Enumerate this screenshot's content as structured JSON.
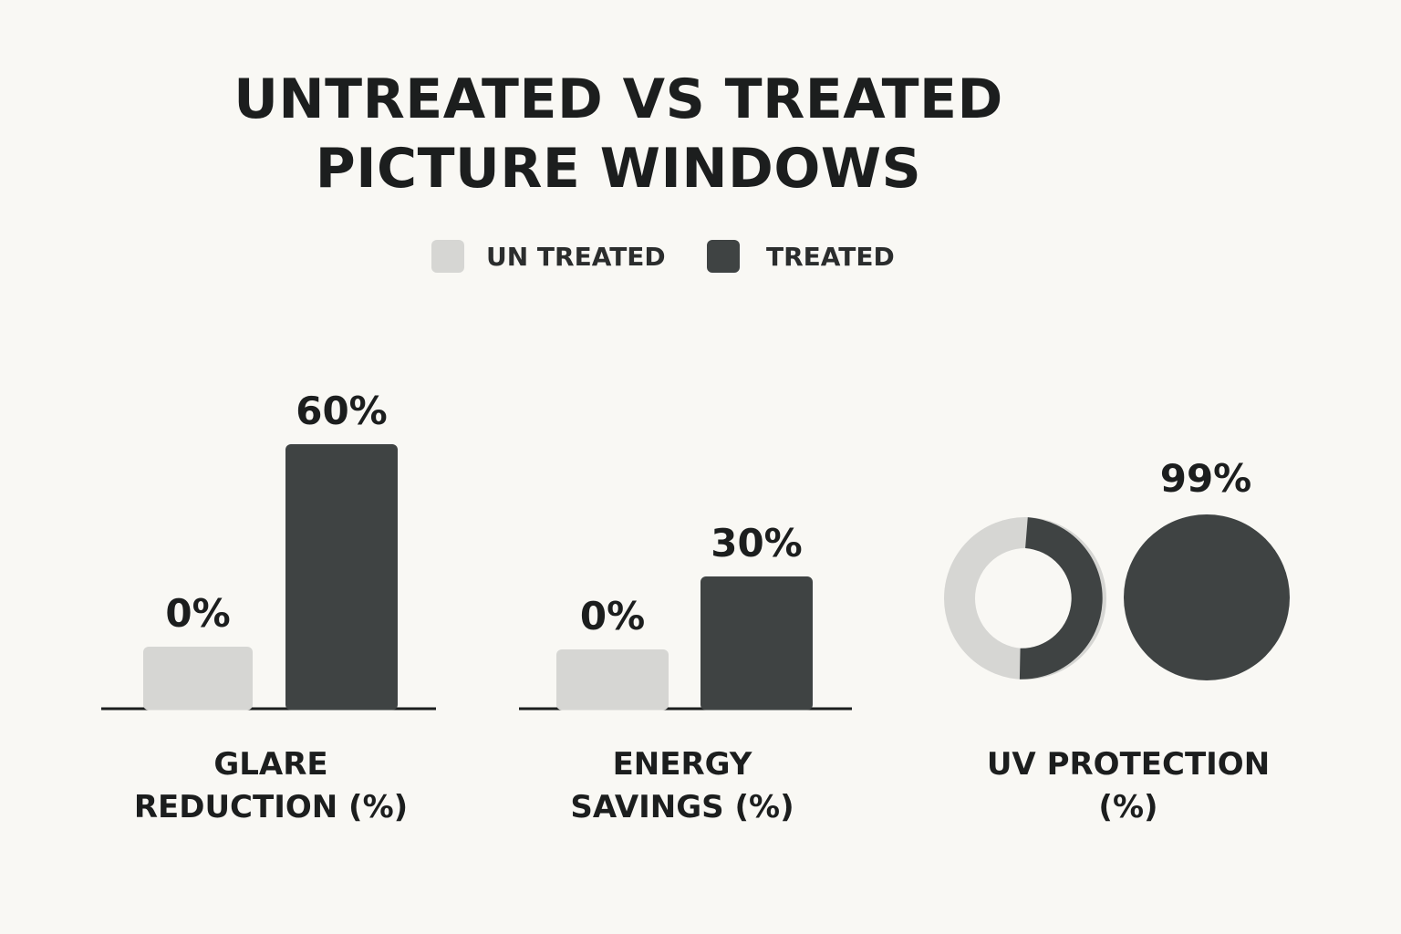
{
  "chart_data": {
    "type": "bar",
    "title": [
      "UNTREATED VS TREATED",
      "PICTURE WINDOWS"
    ],
    "legend": [
      {
        "name": "UN TREATED",
        "color": "#d6d6d3"
      },
      {
        "name": "TREATED",
        "color": "#3f4343"
      }
    ],
    "ylim": [
      0,
      100
    ],
    "groups": [
      {
        "chart": "bar",
        "label": [
          "GLARE",
          "REDUCTION (%)"
        ],
        "values": [
          0,
          60
        ],
        "value_labels": [
          "0%",
          "60%"
        ]
      },
      {
        "chart": "bar",
        "label": [
          "ENERGY",
          "SAVINGS (%)"
        ],
        "values": [
          0,
          30
        ],
        "value_labels": [
          "0%",
          "30%"
        ]
      },
      {
        "chart": "donut-and-pie",
        "label": [
          "UV PROTECTION",
          "(%)"
        ],
        "values": [
          null,
          99
        ],
        "value_labels": [
          "",
          "99%"
        ]
      }
    ]
  },
  "colors": {
    "untreated": "#d6d6d3",
    "treated": "#3f4343",
    "axis": "#1c1e1e",
    "text": "#1c1e1e",
    "background": "#f9f8f4"
  }
}
